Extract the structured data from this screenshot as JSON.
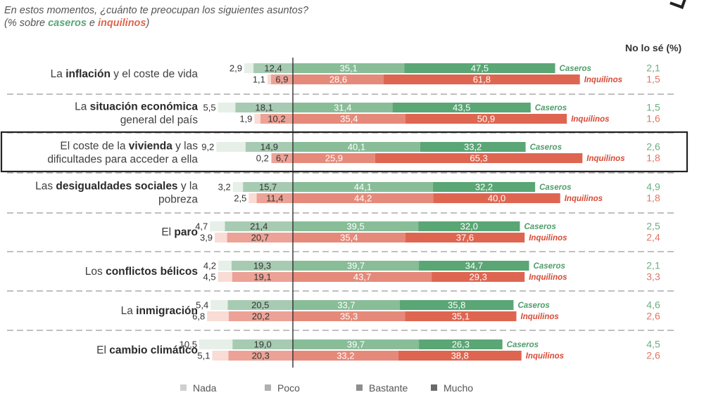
{
  "title": {
    "line1": "En estos momentos, ¿cuánto te preocupan los siguientes asuntos?",
    "line2_prefix": "(% sobre ",
    "caseros": "caseros",
    "line2_mid": " e ",
    "inquilinos": "inquilinos",
    "line2_suffix": ")"
  },
  "nolose_header": "No lo sé (%)",
  "legend": [
    "Nada",
    "Poco",
    "Bastante",
    "Mucho"
  ],
  "colors": {
    "caseros": [
      "#e6efe8",
      "#a7cbb2",
      "#88bd98",
      "#5aa675"
    ],
    "inquilinos": [
      "#f9dcd5",
      "#eca296",
      "#e58a7a",
      "#de6651"
    ],
    "label_caseros": "#4f9d6a",
    "label_inquilinos": "#d84a35",
    "legend": [
      "#cfcfcf",
      "#b0b0b0",
      "#8e8e8e",
      "#6a6a6a"
    ]
  },
  "chart_data": {
    "type": "bar",
    "subtype": "diverging-stacked-horizontal",
    "series_labels": [
      "Caseros",
      "Inquilinos"
    ],
    "segments": [
      "Nada",
      "Poco",
      "Bastante",
      "Mucho"
    ],
    "categories": [
      {
        "label_parts": [
          {
            "t": "La ",
            "b": false
          },
          {
            "t": "inflación",
            "b": true
          },
          {
            "t": " y el coste de vida",
            "b": false
          }
        ],
        "label_lines": 1,
        "highlight": false,
        "caseros": {
          "nada": "2,9",
          "poco": "12,4",
          "bastante": "35,1",
          "mucho": "47,5",
          "nolose": "2,1"
        },
        "inquilinos": {
          "nada": "1,1",
          "poco": "6,9",
          "bastante": "28,6",
          "mucho": "61,8",
          "nolose": "1,5"
        }
      },
      {
        "label_parts": [
          {
            "t": "La ",
            "b": false
          },
          {
            "t": "situación económica",
            "b": true
          },
          {
            "t": "\ngeneral del país",
            "b": false
          }
        ],
        "label_lines": 2,
        "highlight": false,
        "caseros": {
          "nada": "5,5",
          "poco": "18,1",
          "bastante": "31,4",
          "mucho": "43,5",
          "nolose": "1,5"
        },
        "inquilinos": {
          "nada": "1,9",
          "poco": "10,2",
          "bastante": "35,4",
          "mucho": "50,9",
          "nolose": "1,6"
        }
      },
      {
        "label_parts": [
          {
            "t": "El coste de la ",
            "b": false
          },
          {
            "t": "vivienda",
            "b": true
          },
          {
            "t": " y las\ndificultades para acceder a ella",
            "b": false
          }
        ],
        "label_lines": 2,
        "highlight": true,
        "caseros": {
          "nada": "9,2",
          "poco": "14,9",
          "bastante": "40,1",
          "mucho": "33,2",
          "nolose": "2,6"
        },
        "inquilinos": {
          "nada": "0,2",
          "poco": "6,7",
          "bastante": "25,9",
          "mucho": "65,3",
          "nolose": "1,8"
        }
      },
      {
        "label_parts": [
          {
            "t": "Las ",
            "b": false
          },
          {
            "t": "desigualdades sociales",
            "b": true
          },
          {
            "t": " y la\npobreza",
            "b": false
          }
        ],
        "label_lines": 2,
        "highlight": false,
        "caseros": {
          "nada": "3,2",
          "poco": "15,7",
          "bastante": "44,1",
          "mucho": "32,2",
          "nolose": "4,9"
        },
        "inquilinos": {
          "nada": "2,5",
          "poco": "11,4",
          "bastante": "44,2",
          "mucho": "40,0",
          "nolose": "1,8"
        }
      },
      {
        "label_parts": [
          {
            "t": "El ",
            "b": false
          },
          {
            "t": "paro",
            "b": true
          }
        ],
        "label_lines": 1,
        "highlight": false,
        "caseros": {
          "nada": "4,7",
          "poco": "21,4",
          "bastante": "39,5",
          "mucho": "32,0",
          "nolose": "2,5"
        },
        "inquilinos": {
          "nada": "3,9",
          "poco": "20,7",
          "bastante": "35,4",
          "mucho": "37,6",
          "nolose": "2,4"
        }
      },
      {
        "label_parts": [
          {
            "t": "Los ",
            "b": false
          },
          {
            "t": "conflictos bélicos",
            "b": true
          }
        ],
        "label_lines": 1,
        "highlight": false,
        "caseros": {
          "nada": "4,2",
          "poco": "19,3",
          "bastante": "39,7",
          "mucho": "34,7",
          "nolose": "2,1"
        },
        "inquilinos": {
          "nada": "4,5",
          "poco": "19,1",
          "bastante": "43,7",
          "mucho": "29,3",
          "nolose": "3,3"
        }
      },
      {
        "label_parts": [
          {
            "t": "La ",
            "b": false
          },
          {
            "t": "inmigración",
            "b": true
          }
        ],
        "label_lines": 1,
        "highlight": false,
        "caseros": {
          "nada": "5,4",
          "poco": "20,5",
          "bastante": "33,7",
          "mucho": "35,8",
          "nolose": "4,6"
        },
        "inquilinos": {
          "nada": "6,8",
          "poco": "20,2",
          "bastante": "35,3",
          "mucho": "35,1",
          "nolose": "2,6"
        }
      },
      {
        "label_parts": [
          {
            "t": "El ",
            "b": false
          },
          {
            "t": "cambio climático",
            "b": true
          }
        ],
        "label_lines": 1,
        "highlight": false,
        "caseros": {
          "nada": "10,5",
          "poco": "19,0",
          "bastante": "39,7",
          "mucho": "26,3",
          "nolose": "4,5"
        },
        "inquilinos": {
          "nada": "5,1",
          "poco": "20,3",
          "bastante": "33,2",
          "mucho": "38,8",
          "nolose": "2,6"
        }
      }
    ]
  }
}
